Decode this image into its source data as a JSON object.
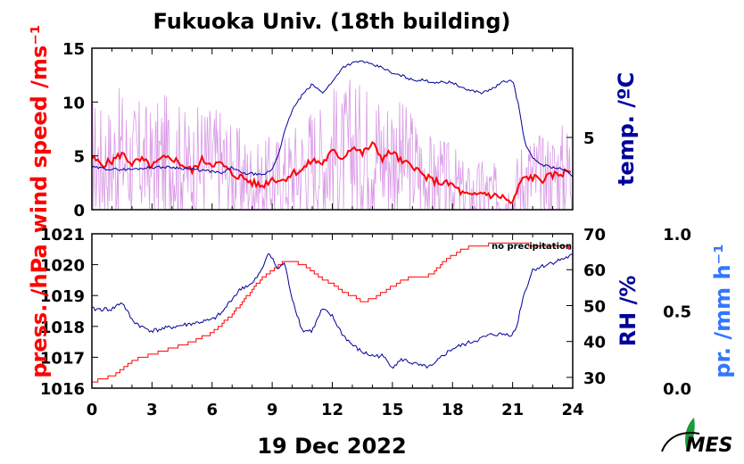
{
  "title": "Fukuoka Univ. (18th building)",
  "date_label": "19 Dec 2022",
  "logo_text": "MES",
  "colors": {
    "wind_mean": "#ff0000",
    "wind_gust": "#cc77dd",
    "temperature": "#000099",
    "pressure": "#ff0000",
    "rh": "#000099",
    "precip_axis": "#3377ff",
    "axis_text": "#000000"
  },
  "chart_data": [
    {
      "type": "line",
      "panel": "top",
      "x_ticks": [
        "0",
        "3",
        "6",
        "9",
        "12",
        "15",
        "18",
        "21",
        "24"
      ],
      "xlim": [
        0,
        24
      ],
      "left_axis": {
        "label": "wind speed /ms⁻¹",
        "ticks": [
          "0",
          "5",
          "10",
          "15"
        ],
        "ylim": [
          0,
          15
        ]
      },
      "right_axis": {
        "label": "temp. /ºC",
        "ticks": [
          "5"
        ],
        "ylim": [
          1.6,
          9.2
        ]
      },
      "series": [
        {
          "key": "wind_mean",
          "axis": "left",
          "x": [
            0,
            0.5,
            1,
            1.5,
            2,
            2.5,
            3,
            3.5,
            4,
            4.5,
            5,
            5.5,
            6,
            6.5,
            7,
            7.5,
            8,
            8.5,
            9,
            9.5,
            10,
            10.5,
            11,
            11.5,
            12,
            12.5,
            13,
            13.5,
            14,
            14.5,
            15,
            15.5,
            16,
            16.5,
            17,
            17.5,
            18,
            18.5,
            19,
            19.5,
            20,
            20.5,
            21,
            21.3,
            21.6,
            22,
            22.5,
            23,
            23.5,
            24
          ],
          "y": [
            4.8,
            4.2,
            4.5,
            5.2,
            4.3,
            4.6,
            4.0,
            4.7,
            4.8,
            4.2,
            3.6,
            4.6,
            4.3,
            4.2,
            3.3,
            3.0,
            2.5,
            2.2,
            2.9,
            2.7,
            3.4,
            3.7,
            4.6,
            4.3,
            5.4,
            4.8,
            5.9,
            5.2,
            6.1,
            4.8,
            5.4,
            4.3,
            4.2,
            3.2,
            2.7,
            2.5,
            2.3,
            1.5,
            1.2,
            1.6,
            1.3,
            1.2,
            0.5,
            2.2,
            3.0,
            3.0,
            2.8,
            3.2,
            3.4,
            3.7
          ]
        },
        {
          "key": "wind_gust",
          "axis": "left",
          "note": "instantaneous wind (light purple, noisy)"
        },
        {
          "key": "temperature",
          "axis": "right",
          "x": [
            0,
            1,
            2,
            3,
            4,
            5,
            6,
            6.5,
            7,
            7.5,
            8,
            8.5,
            9,
            9.3,
            9.6,
            10,
            10.5,
            11,
            11.5,
            12,
            12.5,
            13,
            13.5,
            14,
            14.5,
            15,
            15.5,
            16,
            16.5,
            17,
            17.5,
            18,
            18.5,
            19,
            19.5,
            20,
            20.5,
            21,
            21.3,
            21.6,
            22,
            22.5,
            23,
            23.5,
            24
          ],
          "y": [
            3.6,
            3.5,
            3.5,
            3.6,
            3.6,
            3.5,
            3.4,
            3.3,
            3.6,
            3.3,
            3.3,
            3.2,
            3.5,
            4.2,
            5.2,
            6.3,
            7.0,
            7.5,
            7.1,
            7.6,
            8.3,
            8.5,
            8.6,
            8.4,
            8.3,
            8.0,
            7.9,
            7.7,
            7.7,
            7.6,
            7.6,
            7.6,
            7.3,
            7.2,
            7.1,
            7.3,
            7.6,
            7.7,
            6.5,
            4.8,
            4.0,
            3.7,
            3.6,
            3.5,
            3.2
          ]
        }
      ]
    },
    {
      "type": "line",
      "panel": "bottom",
      "x_ticks": [
        "0",
        "3",
        "6",
        "9",
        "12",
        "15",
        "18",
        "21",
        "24"
      ],
      "xlim": [
        0,
        24
      ],
      "left_axis": {
        "label": "press. /hPa",
        "ticks": [
          "1016",
          "1017",
          "1018",
          "1019",
          "1020",
          "1021"
        ],
        "ylim": [
          1016,
          1021
        ]
      },
      "right_axis": {
        "label": "RH /%",
        "ticks": [
          "30",
          "40",
          "50",
          "60",
          "70"
        ],
        "ylim": [
          27,
          70
        ]
      },
      "far_right_axis": {
        "label": "pr. /mm h⁻¹",
        "ticks": [
          "0.0",
          "0.5",
          "1.0"
        ],
        "ylim": [
          0,
          1
        ]
      },
      "annotation": "no precipitation",
      "series": [
        {
          "key": "pressure",
          "axis": "left",
          "x": [
            0,
            0.5,
            1,
            1.5,
            2,
            3,
            4,
            5,
            6,
            7,
            8,
            8.5,
            9,
            9.5,
            10,
            10.5,
            11,
            11.5,
            12,
            12.5,
            13,
            13.5,
            14,
            14.5,
            15,
            15.5,
            16,
            16.5,
            17,
            17.5,
            18,
            18.5,
            19,
            19.5,
            20,
            20.5,
            21,
            21.5,
            22,
            22.5,
            23,
            23.5,
            24
          ],
          "y": [
            1016.2,
            1016.3,
            1016.4,
            1016.6,
            1016.9,
            1017.1,
            1017.3,
            1017.5,
            1017.8,
            1018.4,
            1019.2,
            1019.6,
            1019.8,
            1020.1,
            1020.1,
            1020.0,
            1019.8,
            1019.5,
            1019.4,
            1019.1,
            1019.0,
            1018.8,
            1018.9,
            1019.1,
            1019.3,
            1019.5,
            1019.6,
            1019.6,
            1019.7,
            1020.1,
            1020.3,
            1020.5,
            1020.6,
            1020.6,
            1020.7,
            1020.7,
            1020.7,
            1020.7,
            1020.6,
            1020.6,
            1020.6,
            1020.6,
            1020.5
          ]
        },
        {
          "key": "rh",
          "axis": "right",
          "x": [
            0,
            1,
            1.5,
            2,
            2.5,
            3,
            4,
            5,
            6,
            6.5,
            7,
            7.5,
            8,
            8.5,
            8.8,
            9,
            9.3,
            9.6,
            10,
            10.5,
            11,
            11.5,
            12,
            12.5,
            13,
            13.5,
            14,
            14.5,
            15,
            15.5,
            16,
            16.5,
            17,
            17.5,
            18,
            18.5,
            19,
            19.5,
            20,
            20.5,
            21,
            21.2,
            21.5,
            22,
            22.5,
            23,
            23.5,
            24
          ],
          "y": [
            49,
            49,
            51,
            46,
            44,
            43,
            44,
            45,
            46,
            48,
            52,
            55,
            56,
            60,
            65,
            63,
            60,
            62,
            52,
            43,
            43,
            49,
            47,
            42,
            39,
            37,
            36,
            36,
            33,
            35,
            34,
            33,
            33,
            36,
            38,
            39,
            40,
            41,
            42,
            42,
            42,
            44,
            52,
            60,
            61,
            62,
            63,
            64
          ]
        }
      ]
    }
  ]
}
